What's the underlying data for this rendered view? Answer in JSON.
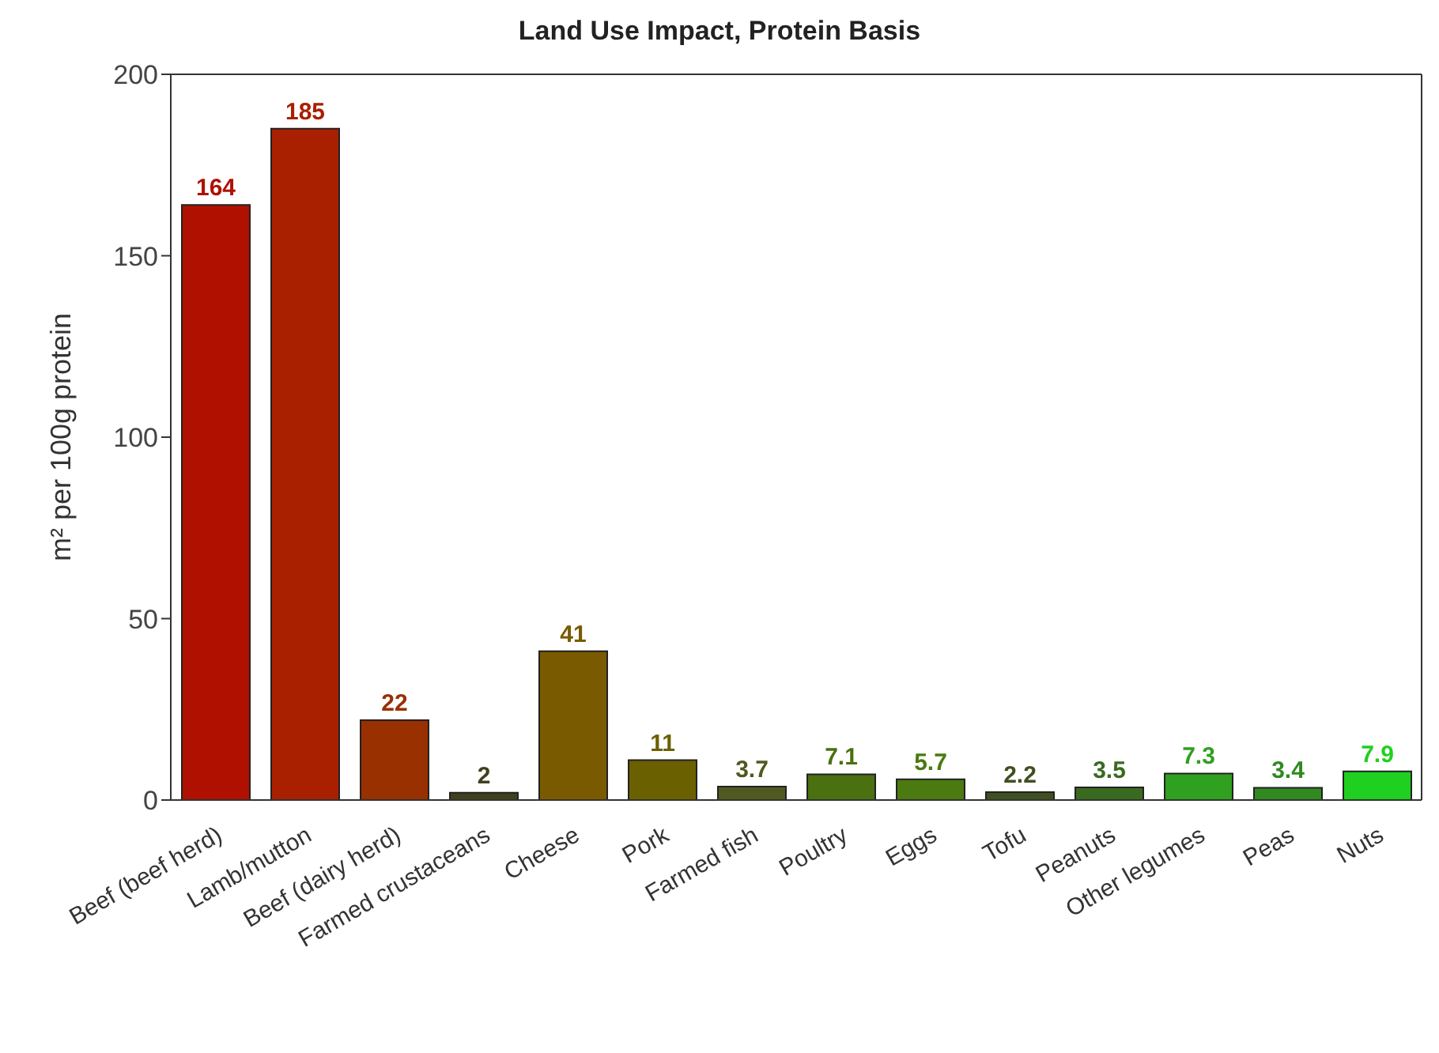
{
  "chart_data": {
    "type": "bar",
    "title": "Land Use Impact, Protein Basis",
    "ylabel": "m² per 100g protein",
    "categories": [
      "Beef (beef herd)",
      "Lamb/mutton",
      "Beef (dairy herd)",
      "Farmed crustaceans",
      "Cheese",
      "Pork",
      "Farmed fish",
      "Poultry",
      "Eggs",
      "Tofu",
      "Peanuts",
      "Other legumes",
      "Peas",
      "Nuts"
    ],
    "values": [
      164,
      185,
      22,
      2,
      41,
      11,
      3.7,
      7.1,
      5.7,
      2.2,
      3.5,
      7.3,
      3.4,
      7.9
    ],
    "colors": [
      "#b01000",
      "#a82000",
      "#983000",
      "#404020",
      "#7a5a00",
      "#6a6000",
      "#505a20",
      "#4a7010",
      "#4a7a10",
      "#405020",
      "#3a6a20",
      "#30a020",
      "#308a20",
      "#20d020"
    ],
    "ylim": [
      0,
      200
    ],
    "yticks": [
      0,
      50,
      100,
      150,
      200
    ],
    "grid": false,
    "data_labels": true
  }
}
